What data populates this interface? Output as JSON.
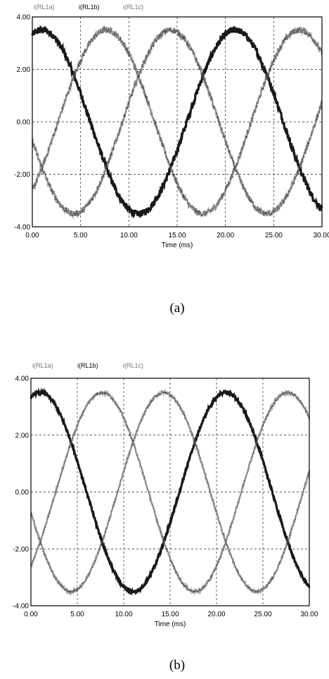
{
  "chart_data": [
    {
      "type": "line",
      "caption": "(a)",
      "xlabel": "Time (ms)",
      "ylabel": "",
      "xlim": [
        0,
        30
      ],
      "ylim": [
        -4,
        4
      ],
      "x_ticks": [
        "0.00",
        "5.00",
        "10.00",
        "15.00",
        "20.00",
        "25.00",
        "30.00"
      ],
      "y_ticks": [
        "4.00",
        "2.00",
        "0.00",
        "-2.00",
        "-4.00"
      ],
      "grid": true,
      "legend_position": "top-left",
      "legend": [
        "i(RL1a)",
        "i(RL1b)",
        "i(RL1c)"
      ],
      "series": [
        {
          "name": "i(RL1a)",
          "amplitude": 3.5,
          "period_ms": 20,
          "phase_deg": 72,
          "style": "bold",
          "color": "#000000",
          "noise": 0.12
        },
        {
          "name": "i(RL1b)",
          "amplitude": 3.5,
          "period_ms": 20,
          "phase_deg": -48,
          "style": "thin",
          "color": "#555555",
          "noise": 0.12
        },
        {
          "name": "i(RL1c)",
          "amplitude": 3.5,
          "period_ms": 20,
          "phase_deg": 192,
          "style": "thin",
          "color": "#555555",
          "noise": 0.12
        }
      ]
    },
    {
      "type": "line",
      "caption": "(b)",
      "xlabel": "Time (ms)",
      "ylabel": "",
      "xlim": [
        0,
        30
      ],
      "ylim": [
        -4,
        4
      ],
      "x_ticks": [
        "0.00",
        "5.00",
        "10.00",
        "15.00",
        "20.00",
        "25.00",
        "30.00"
      ],
      "y_ticks": [
        "4.00",
        "2.00",
        "0.00",
        "-2.00",
        "-4.00"
      ],
      "grid": true,
      "legend_position": "top-left",
      "legend": [
        "i(RL1a)",
        "i(RL1b)",
        "i(RL1c)"
      ],
      "series": [
        {
          "name": "i(RL1a)",
          "amplitude": 3.5,
          "period_ms": 20,
          "phase_deg": 72,
          "style": "bold",
          "color": "#000000",
          "noise": 0.05
        },
        {
          "name": "i(RL1b)",
          "amplitude": 3.5,
          "period_ms": 20,
          "phase_deg": -48,
          "style": "thin",
          "color": "#555555",
          "noise": 0.05
        },
        {
          "name": "i(RL1c)",
          "amplitude": 3.5,
          "period_ms": 20,
          "phase_deg": 192,
          "style": "thin",
          "color": "#555555",
          "noise": 0.05
        }
      ]
    }
  ]
}
